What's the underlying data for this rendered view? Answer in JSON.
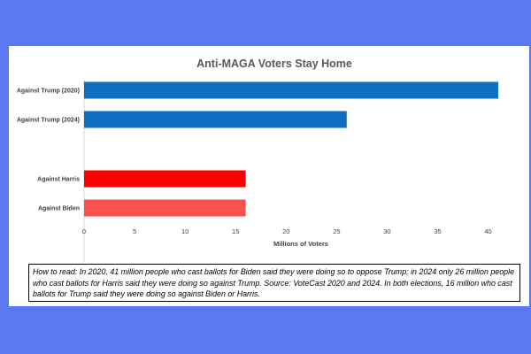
{
  "chart_data": {
    "type": "bar",
    "orientation": "horizontal",
    "title": "Anti-MAGA Voters Stay Home",
    "xlabel": "Millions of Voters",
    "ylabel": "",
    "xlim": [
      0,
      42
    ],
    "xticks": [
      0,
      5,
      10,
      15,
      20,
      25,
      30,
      35,
      40
    ],
    "categories": [
      "Against Trump (2020)",
      "Against Trump (2024)",
      "",
      "Against Harris",
      "Against Biden"
    ],
    "values": [
      41,
      26,
      null,
      16,
      16
    ],
    "colors": [
      "#0e6fc2",
      "#0e6fc2",
      null,
      "#ff0000",
      "#ff5050"
    ],
    "grid": false,
    "legend": "none"
  },
  "note": "How to read: In 2020, 41 million people who cast ballots for Biden said they were doing so to oppose Trump; in 2024 only 26 million people who cast ballots for Harris said they were doing so against Trump. Source: VoteCast 2020 and 2024.  In both elections, 16 million who cast ballots for Trump said they were doing so against Biden or Harris."
}
